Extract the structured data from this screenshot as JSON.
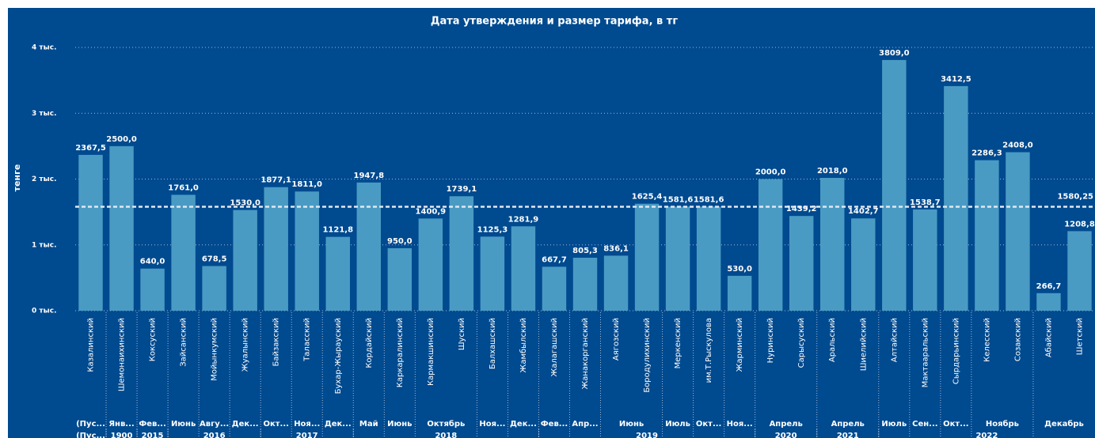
{
  "chart_data": {
    "type": "bar",
    "title": "Дата утверждения и размер тарифа, в тг",
    "y_label": "тенге",
    "categories": [
      "Казалинский",
      "Шемонаихинский",
      "Коксуский",
      "Зайсанский",
      "Мойынкумский",
      "Жуалынский",
      "Байзакский",
      "Таласский",
      "Бухар-Жырауский",
      "Кордайский",
      "Каркаралинский",
      "Кармакшинский",
      "Шуский",
      "Балхашский",
      "Жамбылский",
      "Жалагашский",
      "Жанакорганский",
      "Аягозский",
      "Бородулихинский",
      "Меркенский",
      "им.Т.Рыскулова",
      "Жарминский",
      "Нуринский",
      "Сарысуский",
      "Аральский",
      "Шиелийский",
      "Алтайский",
      "Мактааральский",
      "Сырдарьинский",
      "Келесский",
      "Созакский",
      "Абайский",
      "Шетский"
    ],
    "values": [
      2367.5,
      2500.0,
      640.0,
      1761.0,
      678.5,
      1530.0,
      1877.1,
      1811.0,
      1121.8,
      1947.8,
      950.0,
      1400.9,
      1739.1,
      1125.3,
      1281.9,
      667.7,
      805.3,
      836.1,
      1625.4,
      1581.6,
      1581.6,
      530.0,
      2000.0,
      1439.2,
      2018.0,
      1402.7,
      3809.0,
      1538.7,
      3412.5,
      2286.3,
      2408.0,
      266.7,
      1208.8
    ],
    "value_labels": [
      "2367,5",
      "2500,0",
      "640,0",
      "1761,0",
      "678,5",
      "1530,0",
      "1877,1",
      "1811,0",
      "1121,8",
      "1947,8",
      "950,0",
      "1400,9",
      "1739,1",
      "1125,3",
      "1281,9",
      "667,7",
      "805,3",
      "836,1",
      "1625,4",
      "1581,6",
      "1581,6",
      "530,0",
      "2000,0",
      "1439,2",
      "2018,0",
      "1402,7",
      "3809,0",
      "1538,7",
      "3412,5",
      "2286,3",
      "2408,0",
      "266,7",
      "1208,8"
    ],
    "months": [
      "(Пус...",
      "Янв...",
      "Фев...",
      "Июнь",
      "Авгу...",
      "Дек...",
      "Окт...",
      "Ноя...",
      "Дек...",
      "Май",
      "Июнь",
      "Октябрь",
      null,
      "Ноя...",
      "Дек...",
      "Фев...",
      "Апр...",
      "Июнь",
      null,
      "Июль",
      "Окт...",
      "Ноя...",
      "Апрель",
      null,
      "Апрель",
      null,
      "Июль",
      "Сен...",
      "Окт...",
      "Ноябрь",
      null,
      "Декабрь",
      null
    ],
    "years": [
      "(Пус...",
      "1900",
      "2015",
      "2016",
      null,
      null,
      "2017",
      null,
      null,
      "2018",
      null,
      null,
      null,
      null,
      null,
      "2019",
      null,
      null,
      null,
      null,
      null,
      null,
      "2020",
      null,
      "2021",
      null,
      "2022",
      null,
      null,
      null,
      null,
      null,
      null
    ],
    "average": 1580.25,
    "average_label": "1580,25",
    "color": "#4a9bc4",
    "ylim": [
      0,
      4000
    ],
    "yticks": [
      {
        "value": 0,
        "label": "0 тыс."
      },
      {
        "value": 1000,
        "label": "1 тыс."
      },
      {
        "value": 2000,
        "label": "2 тыс."
      },
      {
        "value": 3000,
        "label": "3 тыс."
      },
      {
        "value": 4000,
        "label": "4 тыс."
      }
    ],
    "grid": true
  }
}
